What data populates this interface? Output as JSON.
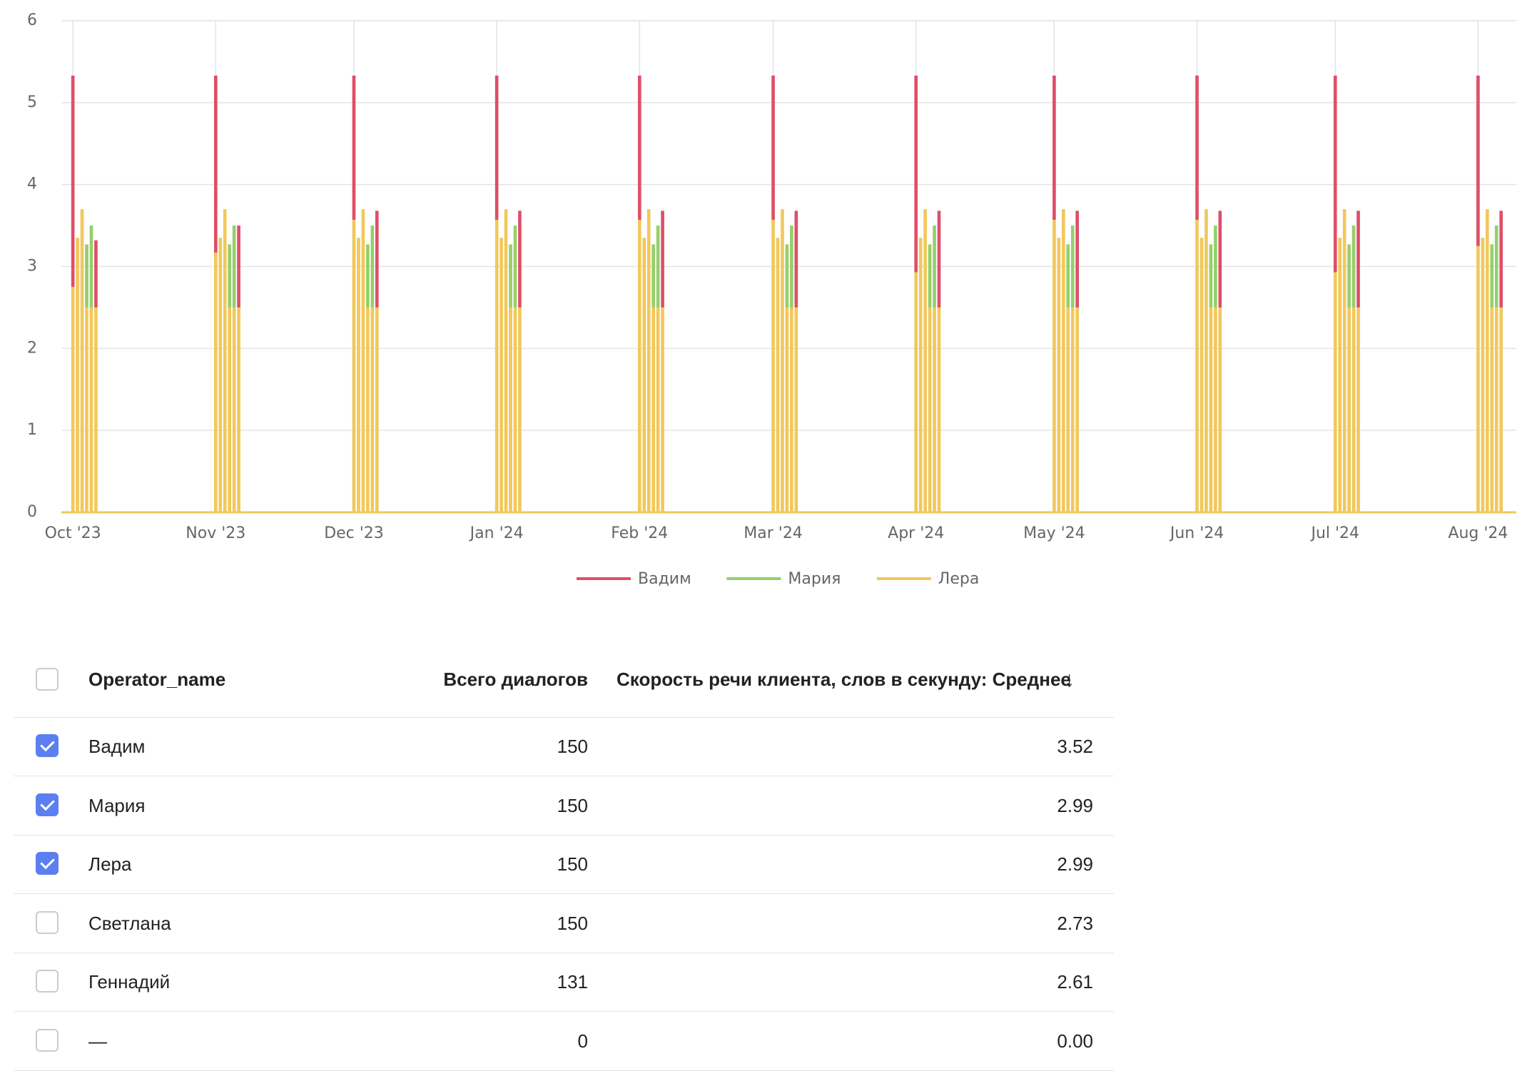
{
  "chart_data": {
    "type": "stacked_bar",
    "x": [
      0,
      1,
      2,
      3,
      4,
      5,
      31,
      32,
      33,
      34,
      35,
      36,
      61,
      62,
      63,
      64,
      65,
      66,
      92,
      93,
      94,
      95,
      96,
      97,
      123,
      124,
      125,
      126,
      127,
      128,
      152,
      153,
      154,
      155,
      156,
      157,
      183,
      184,
      185,
      186,
      187,
      188,
      213,
      214,
      215,
      216,
      217,
      218,
      244,
      245,
      246,
      247,
      248,
      249,
      274,
      275,
      276,
      277,
      278,
      279,
      305,
      306,
      307,
      308,
      309,
      310
    ],
    "series": [
      {
        "name": "Лера",
        "color": "#f1c85c",
        "values": [
          2.75,
          3.35,
          3.7,
          2.5,
          2.5,
          2.5,
          3.17,
          3.35,
          3.7,
          2.5,
          2.5,
          2.5,
          3.57,
          3.35,
          3.7,
          2.5,
          2.5,
          2.5,
          3.57,
          3.35,
          3.7,
          2.5,
          2.5,
          2.5,
          3.57,
          3.35,
          3.7,
          2.5,
          2.5,
          2.5,
          3.57,
          3.35,
          3.7,
          2.5,
          2.5,
          2.5,
          2.93,
          3.35,
          3.7,
          2.5,
          2.5,
          2.5,
          3.57,
          3.35,
          3.7,
          2.5,
          2.5,
          2.5,
          3.57,
          3.35,
          3.7,
          2.5,
          2.5,
          2.5,
          2.93,
          3.35,
          3.7,
          2.5,
          2.5,
          2.5,
          3.25,
          3.35,
          3.7,
          2.5,
          2.5,
          2.5
        ]
      },
      {
        "name": "Мария",
        "color": "#95cf6b",
        "values": [
          0,
          0,
          0,
          0.77,
          1.0,
          0,
          0,
          0,
          0,
          0.77,
          1.0,
          0,
          0,
          0,
          0,
          0.77,
          1.0,
          0,
          0,
          0,
          0,
          0.77,
          1.0,
          0,
          0,
          0,
          0,
          0.77,
          1.0,
          0,
          0,
          0,
          0,
          0.77,
          1.0,
          0,
          0,
          0,
          0,
          0.77,
          1.0,
          0,
          0,
          0,
          0,
          0.77,
          1.0,
          0,
          0,
          0,
          0,
          0.77,
          1.0,
          0,
          0,
          0,
          0,
          0.77,
          1.0,
          0,
          0,
          0,
          0,
          0.77,
          1.0,
          0
        ]
      },
      {
        "name": "Вадим",
        "color": "#de4f67",
        "values": [
          2.58,
          0,
          0,
          0,
          0,
          0.82,
          2.16,
          0,
          0,
          0,
          0,
          1.0,
          1.76,
          0,
          0,
          0,
          0,
          1.18,
          1.76,
          0,
          0,
          0,
          0,
          1.18,
          1.76,
          0,
          0,
          0,
          0,
          1.18,
          1.76,
          0,
          0,
          0,
          0,
          1.18,
          2.4,
          0,
          0,
          0,
          0,
          1.18,
          1.76,
          0,
          0,
          0,
          0,
          1.18,
          1.76,
          0,
          0,
          0,
          0,
          1.18,
          2.4,
          0,
          0,
          0,
          0,
          1.18,
          2.08,
          0,
          0,
          0,
          0,
          1.18
        ]
      }
    ],
    "xlim": [
      -2.5,
      313.3
    ],
    "xticks": [
      {
        "value": 0,
        "label": "Oct '23"
      },
      {
        "value": 31,
        "label": "Nov '23"
      },
      {
        "value": 61,
        "label": "Dec '23"
      },
      {
        "value": 92,
        "label": "Jan '24"
      },
      {
        "value": 123,
        "label": "Feb '24"
      },
      {
        "value": 152,
        "label": "Mar '24"
      },
      {
        "value": 183,
        "label": "Apr '24"
      },
      {
        "value": 213,
        "label": "May '24"
      },
      {
        "value": 244,
        "label": "Jun '24"
      },
      {
        "value": 274,
        "label": "Jul '24"
      },
      {
        "value": 305,
        "label": "Aug '24"
      }
    ],
    "ylim": [
      0,
      6
    ],
    "yticks": [
      0,
      1,
      2,
      3,
      4,
      5,
      6
    ],
    "grid": true
  },
  "table": {
    "columns": [
      "Operator_name",
      "Всего диалогов",
      "Скорость речи клиента, слов в секунду: Среднее"
    ],
    "rows": [
      {
        "checked": true,
        "cells": [
          "Вадим",
          "150",
          "3.52"
        ]
      },
      {
        "checked": true,
        "cells": [
          "Мария",
          "150",
          "2.99"
        ]
      },
      {
        "checked": true,
        "cells": [
          "Лера",
          "150",
          "2.99"
        ]
      },
      {
        "checked": false,
        "cells": [
          "Светлана",
          "150",
          "2.73"
        ]
      },
      {
        "checked": false,
        "cells": [
          "Геннадий",
          "131",
          "2.61"
        ]
      },
      {
        "checked": false,
        "cells": [
          "—",
          "0",
          "0.00"
        ]
      }
    ]
  }
}
